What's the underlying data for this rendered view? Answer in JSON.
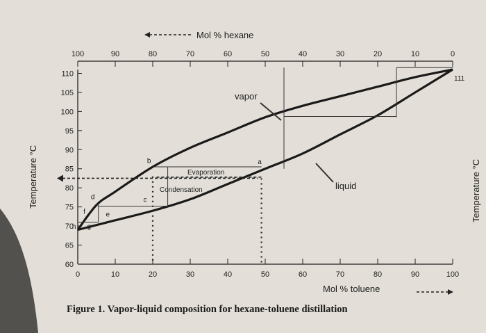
{
  "chart_data": {
    "type": "line",
    "caption": "Figure 1. Vapor-liquid composition for hexane-toluene distillation",
    "xlabel": "Mol % toluene",
    "x2label": "Mol % hexane",
    "ylabel": "Temperature °C",
    "ylabel_right": "Temperature °C",
    "xlim": [
      0,
      100
    ],
    "ylim": [
      60,
      111
    ],
    "x_ticks": [
      0,
      10,
      20,
      30,
      40,
      50,
      60,
      70,
      80,
      90,
      100
    ],
    "x_tick_labels": [
      "0",
      "10",
      "20",
      "30",
      "40",
      "50",
      "60",
      "70",
      "80",
      "90",
      "100"
    ],
    "x2_ticks": [
      0,
      10,
      20,
      30,
      40,
      50,
      60,
      70,
      80,
      90,
      100
    ],
    "x2_tick_labels": [
      "100",
      "90",
      "80",
      "70",
      "60",
      "50",
      "40",
      "30",
      "20",
      "10",
      "0"
    ],
    "y_ticks": [
      60,
      65,
      70,
      75,
      80,
      85,
      90,
      95,
      100,
      105,
      110
    ],
    "y_tick_labels": [
      "60",
      "65",
      "70",
      "75",
      "80",
      "85",
      "90",
      "95",
      "100",
      "105",
      "110"
    ],
    "right_value_label": "111",
    "series": [
      {
        "name": "vapor",
        "x": [
          0,
          5,
          10,
          20,
          30,
          40,
          50,
          60,
          70,
          80,
          90,
          100
        ],
        "y": [
          69,
          75.5,
          79,
          85.5,
          90.5,
          94.5,
          98.5,
          101.5,
          104,
          106.5,
          109,
          111
        ]
      },
      {
        "name": "liquid",
        "x": [
          0,
          10,
          20,
          30,
          40,
          50,
          60,
          70,
          80,
          90,
          100
        ],
        "y": [
          69,
          71.5,
          74,
          77,
          81,
          85,
          89,
          94,
          99,
          105,
          111
        ]
      }
    ],
    "annotations": {
      "vapor_label": "vapor",
      "liquid_label": "liquid",
      "evaporation": "Evaporation",
      "condensation": "Condensation",
      "points": [
        "a",
        "b",
        "c",
        "d",
        "e",
        "f",
        "g",
        "h"
      ]
    },
    "grid": false,
    "legend": "none"
  }
}
